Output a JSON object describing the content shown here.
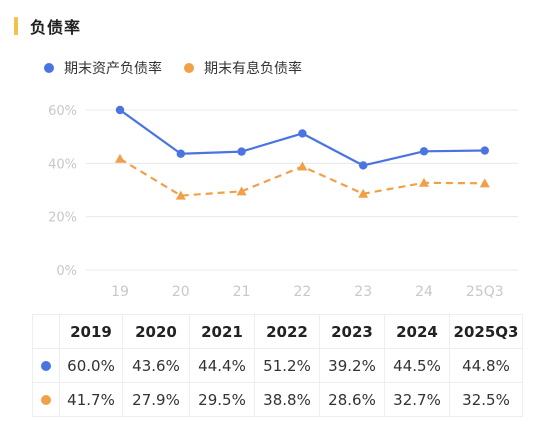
{
  "header": {
    "title": "负债率"
  },
  "colors": {
    "accent": "#f2c24a",
    "series1": "#4a74e0",
    "series2": "#f0a048",
    "grid": "#e8e8e8",
    "tick": "#c8c8c8"
  },
  "legend": [
    {
      "label": "期末资产负债率",
      "color": "#4a74e0"
    },
    {
      "label": "期末有息负债率",
      "color": "#f0a048"
    }
  ],
  "chart_data": {
    "type": "line",
    "title": "负债率",
    "categories": [
      "19",
      "20",
      "21",
      "22",
      "23",
      "24",
      "25Q3"
    ],
    "yticks": [
      "0%",
      "20%",
      "40%",
      "60%"
    ],
    "ylim": [
      0,
      60
    ],
    "grid": true,
    "legend_position": "top-left",
    "series": [
      {
        "name": "期末资产负债率",
        "values": [
          60.0,
          43.6,
          44.4,
          51.2,
          39.2,
          44.5,
          44.8
        ],
        "style": "solid",
        "marker": "circle"
      },
      {
        "name": "期末有息负债率",
        "values": [
          41.7,
          27.9,
          29.5,
          38.8,
          28.6,
          32.7,
          32.5
        ],
        "style": "dashed",
        "marker": "triangle"
      }
    ]
  },
  "table": {
    "headers": [
      "2019",
      "2020",
      "2021",
      "2022",
      "2023",
      "2024",
      "2025Q3"
    ],
    "rows": [
      [
        "60.0%",
        "43.6%",
        "44.4%",
        "51.2%",
        "39.2%",
        "44.5%",
        "44.8%"
      ],
      [
        "41.7%",
        "27.9%",
        "29.5%",
        "38.8%",
        "28.6%",
        "32.7%",
        "32.5%"
      ]
    ]
  }
}
